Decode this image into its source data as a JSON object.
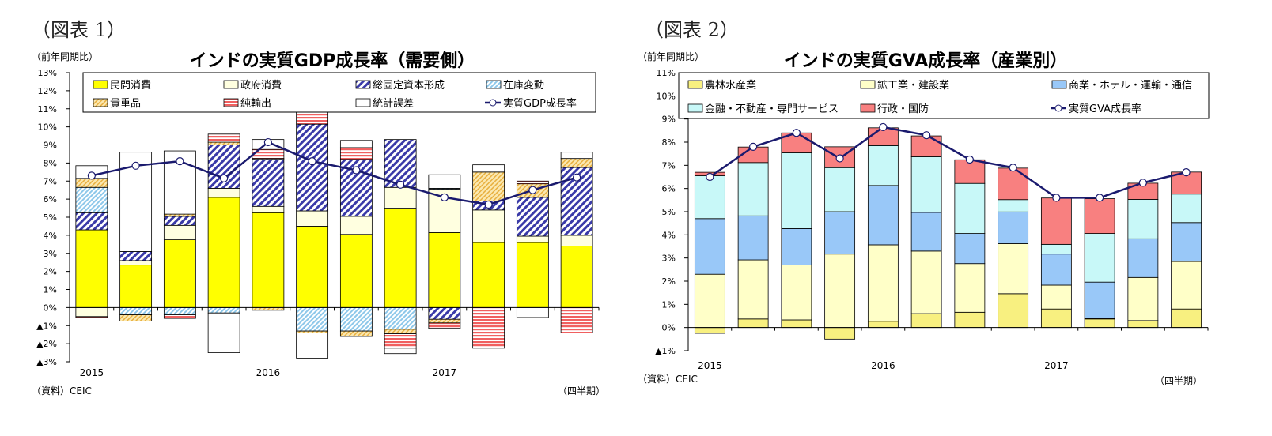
{
  "figures": [
    {
      "label": "（図表 1）",
      "unit": "（前年同期比）",
      "source": "（資料）CEIC",
      "period_note": "（四半期）"
    },
    {
      "label": "（図表 2）",
      "unit": "（前年同期比）",
      "source": "（資料）CEIC",
      "period_note": "（四半期）"
    }
  ],
  "chart_data": [
    {
      "type": "bar",
      "stacked": true,
      "title": "インドの実質GDP成長率（需要側）",
      "ylabel": "（前年同期比）",
      "xlabel": "（四半期）",
      "ylim": [
        -3,
        13
      ],
      "yticks": [
        13,
        12,
        11,
        10,
        9,
        8,
        7,
        6,
        5,
        4,
        3,
        2,
        1,
        0,
        -1,
        -2,
        -3
      ],
      "ytick_labels": [
        "13%",
        "12%",
        "11%",
        "10%",
        "9%",
        "8%",
        "7%",
        "6%",
        "5%",
        "4%",
        "3%",
        "2%",
        "1%",
        "0%",
        "▲1%",
        "▲2%",
        "▲3%"
      ],
      "x_year_labels": [
        {
          "index": 0,
          "text": "2015"
        },
        {
          "index": 4,
          "text": "2016"
        },
        {
          "index": 8,
          "text": "2017"
        }
      ],
      "categories": [
        "2015Q1",
        "2015Q2",
        "2015Q3",
        "2015Q4",
        "2016Q1",
        "2016Q2",
        "2016Q3",
        "2016Q4",
        "2017Q1",
        "2017Q2",
        "2017Q3",
        "2017Q4"
      ],
      "legend_position": "top",
      "series": [
        {
          "name": "民間消費",
          "color": "#FFFF00",
          "pattern": "solid",
          "values": [
            4.3,
            2.35,
            3.75,
            6.1,
            5.25,
            4.5,
            4.05,
            5.5,
            4.15,
            3.6,
            3.6,
            3.4
          ]
        },
        {
          "name": "政府消費",
          "color": "#FFFFE0",
          "pattern": "solid",
          "values": [
            -0.5,
            0.25,
            0.8,
            0.5,
            0.35,
            0.85,
            1.0,
            1.15,
            2.4,
            1.8,
            0.35,
            0.6
          ]
        },
        {
          "name": "総固定資本形成",
          "color": "#3A3AA8",
          "pattern": "diagonal",
          "values": [
            0.95,
            0.5,
            0.5,
            2.4,
            2.6,
            4.8,
            3.15,
            2.65,
            -0.65,
            0.5,
            2.15,
            3.75
          ]
        },
        {
          "name": "在庫変動",
          "color": "#8EC8EA",
          "pattern": "diagonal",
          "values": [
            1.4,
            -0.4,
            -0.4,
            -0.3,
            0.05,
            -1.3,
            -1.3,
            -1.2,
            0.05,
            0.0,
            0.0,
            0.0
          ]
        },
        {
          "name": "貴重品",
          "color": "#E8B040",
          "pattern": "diagonal",
          "values": [
            0.5,
            -0.35,
            0.12,
            0.15,
            -0.15,
            -0.1,
            -0.3,
            -0.25,
            -0.2,
            1.6,
            0.75,
            0.5
          ]
        },
        {
          "name": "純輸出",
          "color": "#F06060",
          "pattern": "horizontal",
          "values": [
            -0.05,
            0.0,
            -0.2,
            0.45,
            0.5,
            0.75,
            0.65,
            -0.8,
            -0.3,
            -2.25,
            0.15,
            -1.4
          ]
        },
        {
          "name": "統計誤差",
          "color": "#FFFFFF",
          "pattern": "solid",
          "values": [
            0.7,
            5.5,
            3.5,
            -2.2,
            0.55,
            -1.4,
            0.4,
            -0.3,
            0.75,
            0.4,
            -0.55,
            0.35
          ]
        }
      ],
      "line": {
        "name": "実質GDP成長率",
        "color": "#1A1A6E",
        "values": [
          7.3,
          7.85,
          8.1,
          7.15,
          9.15,
          8.1,
          7.6,
          6.8,
          6.1,
          5.7,
          6.5,
          7.2
        ]
      }
    },
    {
      "type": "bar",
      "stacked": true,
      "title": "インドの実質GVA成長率（産業別）",
      "ylabel": "（前年同期比）",
      "xlabel": "（四半期）",
      "ylim": [
        -1,
        11
      ],
      "yticks": [
        11,
        10,
        9,
        8,
        7,
        6,
        5,
        4,
        3,
        2,
        1,
        0,
        -1
      ],
      "ytick_labels": [
        "11%",
        "10%",
        "9%",
        "8%",
        "7%",
        "6%",
        "5%",
        "4%",
        "3%",
        "2%",
        "1%",
        "0%",
        "▲1%"
      ],
      "x_year_labels": [
        {
          "index": 0,
          "text": "2015"
        },
        {
          "index": 4,
          "text": "2016"
        },
        {
          "index": 8,
          "text": "2017"
        }
      ],
      "categories": [
        "2015Q1",
        "2015Q2",
        "2015Q3",
        "2015Q4",
        "2016Q1",
        "2016Q2",
        "2016Q3",
        "2016Q4",
        "2017Q1",
        "2017Q2",
        "2017Q3",
        "2017Q4"
      ],
      "legend_position": "top",
      "series": [
        {
          "name": "農林水産業",
          "color": "#F8F080",
          "pattern": "solid",
          "values": [
            -0.25,
            0.37,
            0.33,
            -0.5,
            0.27,
            0.6,
            0.66,
            1.46,
            0.8,
            0.37,
            0.3,
            0.8
          ]
        },
        {
          "name": "鉱工業・建設業",
          "color": "#FFFFC8",
          "pattern": "solid",
          "values": [
            2.3,
            2.55,
            2.37,
            3.17,
            3.3,
            2.7,
            2.1,
            2.16,
            1.03,
            0.03,
            1.86,
            2.05
          ]
        },
        {
          "name": "商業・ホテル・運輸・通信",
          "color": "#99C8F8",
          "pattern": "solid",
          "values": [
            2.4,
            1.9,
            1.57,
            1.83,
            2.56,
            1.67,
            1.3,
            1.37,
            1.34,
            1.56,
            1.67,
            1.68
          ]
        },
        {
          "name": "金融・不動産・専門サービス",
          "color": "#C8F8F8",
          "pattern": "solid",
          "values": [
            1.85,
            2.3,
            3.27,
            1.9,
            1.72,
            2.4,
            2.16,
            0.53,
            0.42,
            2.1,
            1.7,
            1.23
          ]
        },
        {
          "name": "行政・国防",
          "color": "#F88080",
          "pattern": "solid",
          "values": [
            0.15,
            0.67,
            0.86,
            0.9,
            0.77,
            0.9,
            1.02,
            1.36,
            2.0,
            1.5,
            0.7,
            0.95
          ]
        }
      ],
      "line": {
        "name": "実質GVA成長率",
        "color": "#1A1A6E",
        "values": [
          6.5,
          7.8,
          8.4,
          7.3,
          8.65,
          8.3,
          7.25,
          6.9,
          5.6,
          5.6,
          6.25,
          6.7
        ]
      }
    }
  ]
}
